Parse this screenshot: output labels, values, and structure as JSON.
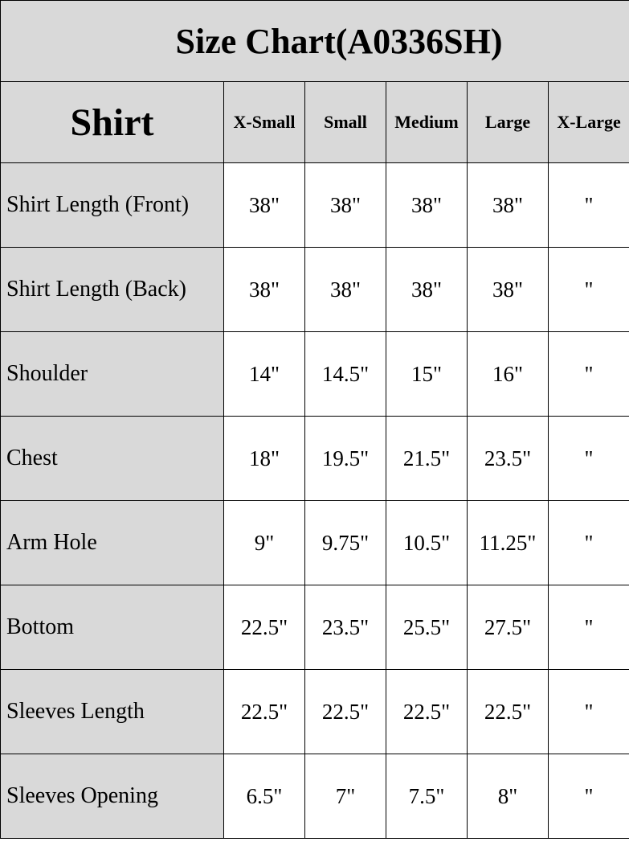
{
  "title": "Size Chart(A0336SH)",
  "header": {
    "category": "Shirt",
    "sizes": [
      "X-Small",
      "Small",
      "Medium",
      "Large",
      "X-Large"
    ]
  },
  "rows": [
    {
      "label": "Shirt Length (Front)",
      "values": [
        "38\"",
        "38\"",
        "38\"",
        "38\"",
        "\""
      ]
    },
    {
      "label": "Shirt Length (Back)",
      "values": [
        "38\"",
        "38\"",
        "38\"",
        "38\"",
        "\""
      ]
    },
    {
      "label": "Shoulder",
      "values": [
        "14\"",
        "14.5\"",
        "15\"",
        "16\"",
        "\""
      ]
    },
    {
      "label": "Chest",
      "values": [
        "18\"",
        "19.5\"",
        "21.5\"",
        "23.5\"",
        "\""
      ]
    },
    {
      "label": "Arm Hole",
      "values": [
        "9\"",
        "9.75\"",
        "10.5\"",
        "11.25\"",
        "\""
      ]
    },
    {
      "label": "Bottom",
      "values": [
        "22.5\"",
        "23.5\"",
        "25.5\"",
        "27.5\"",
        "\""
      ]
    },
    {
      "label": "Sleeves Length",
      "values": [
        "22.5\"",
        "22.5\"",
        "22.5\"",
        "22.5\"",
        "\""
      ]
    },
    {
      "label": "Sleeves Opening",
      "values": [
        "6.5\"",
        "7\"",
        "7.5\"",
        "8\"",
        "\""
      ]
    }
  ],
  "colors": {
    "header_bg": "#d9d9d9",
    "border": "#000000"
  }
}
